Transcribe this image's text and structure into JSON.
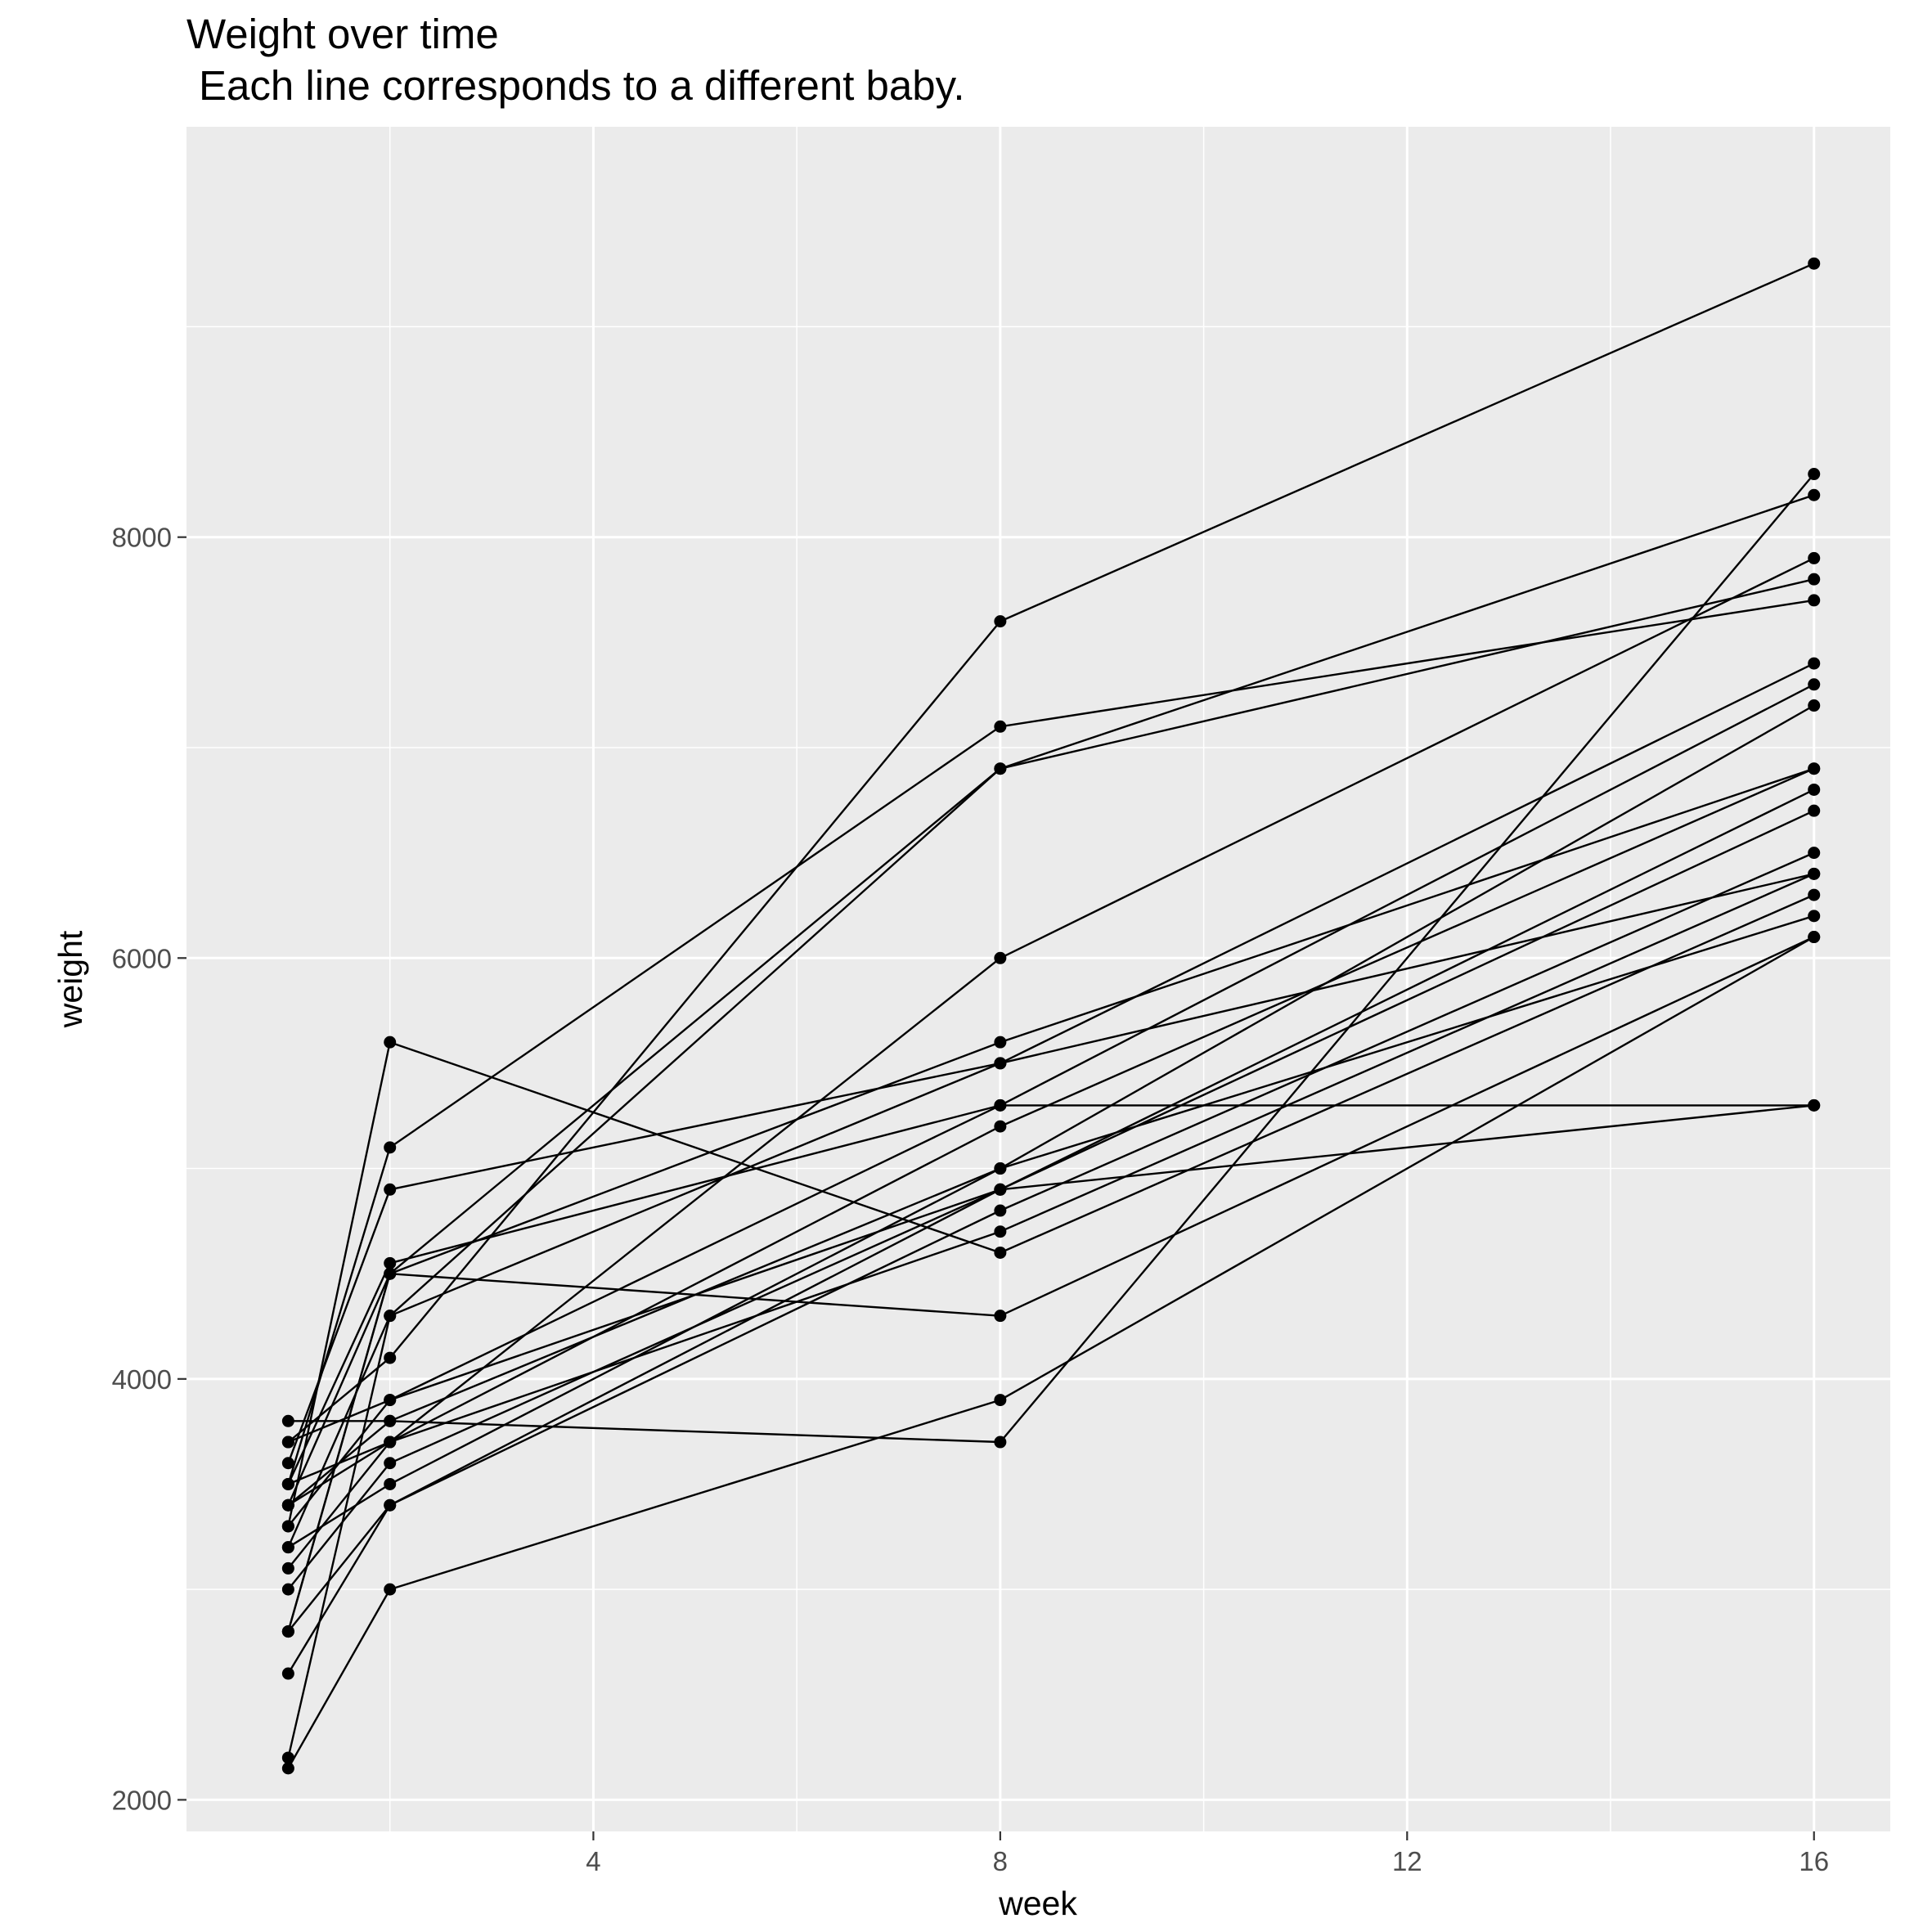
{
  "chart_data": {
    "type": "line",
    "title": "Weight over time",
    "subtitle": "Each line corresponds to a different baby.",
    "xlabel": "week",
    "ylabel": "weight",
    "xlim": [
      0,
      16.75
    ],
    "ylim": [
      1850,
      9950
    ],
    "x_ticks": [
      4,
      8,
      12,
      16
    ],
    "y_ticks": [
      2000,
      4000,
      6000,
      8000
    ],
    "x_minor": [
      2,
      6,
      10,
      14
    ],
    "y_minor": [
      3000,
      5000,
      7000,
      9000
    ],
    "grid": true,
    "legend": "none",
    "colors": {
      "panel": "#ebebeb",
      "grid": "#ffffff",
      "line": "#000000",
      "point": "#000000",
      "text": "#000000",
      "tick": "#4d4d4d"
    },
    "series": [
      {
        "x": [
          1,
          2,
          8,
          16
        ],
        "y": [
          3700,
          4100,
          7600,
          9300
        ]
      },
      {
        "x": [
          1,
          2,
          8,
          16
        ],
        "y": [
          3800,
          3800,
          3700,
          8300
        ]
      },
      {
        "x": [
          1,
          2,
          8,
          16
        ],
        "y": [
          3200,
          4300,
          6900,
          8200
        ]
      },
      {
        "x": [
          1,
          2,
          8,
          16
        ],
        "y": [
          3500,
          5100,
          7100,
          7700
        ]
      },
      {
        "x": [
          1,
          2,
          8,
          16
        ],
        "y": [
          3400,
          3700,
          6000,
          7900
        ]
      },
      {
        "x": [
          1,
          2,
          8,
          16
        ],
        "y": [
          2800,
          4500,
          6900,
          7800
        ]
      },
      {
        "x": [
          1,
          2,
          8,
          16
        ],
        "y": [
          3600,
          4900,
          5500,
          7400
        ]
      },
      {
        "x": [
          1,
          2,
          8,
          16
        ],
        "y": [
          3300,
          3900,
          5300,
          7300
        ]
      },
      {
        "x": [
          1,
          2,
          8,
          16
        ],
        "y": [
          3200,
          3500,
          5000,
          7200
        ]
      },
      {
        "x": [
          1,
          2,
          8,
          16
        ],
        "y": [
          3400,
          4500,
          5600,
          6900
        ]
      },
      {
        "x": [
          1,
          2,
          8,
          16
        ],
        "y": [
          3100,
          3700,
          5200,
          6900
        ]
      },
      {
        "x": [
          1,
          2,
          8,
          16
        ],
        "y": [
          2800,
          3400,
          4900,
          6800
        ]
      },
      {
        "x": [
          1,
          2,
          8,
          16
        ],
        "y": [
          3000,
          3600,
          4900,
          6700
        ]
      },
      {
        "x": [
          1,
          2,
          8,
          16
        ],
        "y": [
          2600,
          3400,
          4800,
          6500
        ]
      },
      {
        "x": [
          1,
          2,
          8,
          16
        ],
        "y": [
          3500,
          3700,
          4700,
          6400
        ]
      },
      {
        "x": [
          1,
          2,
          8,
          16
        ],
        "y": [
          2200,
          4300,
          5500,
          6400
        ]
      },
      {
        "x": [
          1,
          2,
          8,
          16
        ],
        "y": [
          3300,
          5600,
          4600,
          6300
        ]
      },
      {
        "x": [
          1,
          2,
          8,
          16
        ],
        "y": [
          3400,
          3800,
          5000,
          6200
        ]
      },
      {
        "x": [
          1,
          2,
          8,
          16
        ],
        "y": [
          2800,
          4500,
          4300,
          6100
        ]
      },
      {
        "x": [
          1,
          2,
          8,
          16
        ],
        "y": [
          2150,
          3000,
          3900,
          6100
        ]
      },
      {
        "x": [
          1,
          2,
          8,
          16
        ],
        "y": [
          3700,
          3900,
          4900,
          5300
        ]
      },
      {
        "x": [
          1,
          2,
          8,
          16
        ],
        "y": [
          3500,
          4550,
          5300,
          5300
        ]
      }
    ]
  }
}
